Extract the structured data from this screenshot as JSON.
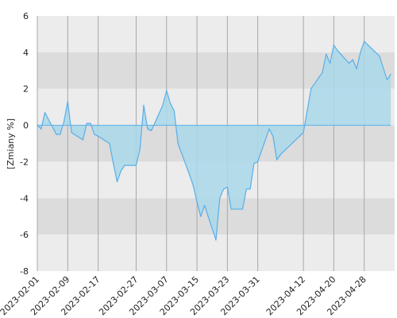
{
  "chart_data": {
    "type": "area",
    "title": "",
    "xlabel": "",
    "ylabel": "[Zmiany %]",
    "ylim": [
      -8,
      6
    ],
    "yticks": [
      6,
      4,
      2,
      0,
      -2,
      -4,
      -6,
      -8
    ],
    "xticks": [
      "2023-02-01",
      "2023-02-09",
      "2023-02-17",
      "2023-02-27",
      "2023-03-07",
      "2023-03-15",
      "2023-03-23",
      "2023-03-31",
      "2023-04-12",
      "2023-04-20",
      "2023-04-28"
    ],
    "x": [
      "2023-02-01",
      "2023-02-02",
      "2023-02-03",
      "2023-02-06",
      "2023-02-07",
      "2023-02-08",
      "2023-02-09",
      "2023-02-10",
      "2023-02-13",
      "2023-02-14",
      "2023-02-15",
      "2023-02-16",
      "2023-02-17",
      "2023-02-20",
      "2023-02-21",
      "2023-02-22",
      "2023-02-23",
      "2023-02-24",
      "2023-02-27",
      "2023-02-28",
      "2023-03-01",
      "2023-03-02",
      "2023-03-03",
      "2023-03-06",
      "2023-03-07",
      "2023-03-08",
      "2023-03-09",
      "2023-03-10",
      "2023-03-13",
      "2023-03-14",
      "2023-03-15",
      "2023-03-16",
      "2023-03-17",
      "2023-03-20",
      "2023-03-21",
      "2023-03-22",
      "2023-03-23",
      "2023-03-24",
      "2023-03-27",
      "2023-03-28",
      "2023-03-29",
      "2023-03-30",
      "2023-03-31",
      "2023-04-03",
      "2023-04-04",
      "2023-04-05",
      "2023-04-06",
      "2023-04-11",
      "2023-04-12",
      "2023-04-13",
      "2023-04-14",
      "2023-04-17",
      "2023-04-18",
      "2023-04-19",
      "2023-04-20",
      "2023-04-21",
      "2023-04-24",
      "2023-04-25",
      "2023-04-26",
      "2023-04-27",
      "2023-04-28",
      "2023-05-02",
      "2023-05-04",
      "2023-05-05"
    ],
    "series": [
      {
        "values": [
          0.0,
          -0.2,
          0.7,
          -0.5,
          -0.5,
          0.2,
          1.3,
          -0.4,
          -0.8,
          0.1,
          0.1,
          -0.5,
          -0.6,
          -1.0,
          -2.1,
          -3.1,
          -2.5,
          -2.2,
          -2.2,
          -1.3,
          1.1,
          -0.2,
          -0.3,
          1.1,
          1.9,
          1.2,
          0.8,
          -1.0,
          -2.7,
          -3.3,
          -4.2,
          -5.0,
          -4.4,
          -6.3,
          -4.0,
          -3.5,
          -3.4,
          -4.6,
          -4.6,
          -3.5,
          -3.5,
          -2.1,
          -2.0,
          -0.2,
          -0.6,
          -1.9,
          -1.6,
          -0.6,
          -0.4,
          0.8,
          2.0,
          2.9,
          3.9,
          3.4,
          4.4,
          4.1,
          3.4,
          3.6,
          3.1,
          4.0,
          4.6,
          3.8,
          2.5,
          2.8
        ],
        "color": "#5aaee8",
        "fill": "#a9d8ea"
      }
    ],
    "band_colors": [
      "#dcdcdc",
      "#ececec"
    ],
    "grid": true,
    "legend": "none"
  }
}
